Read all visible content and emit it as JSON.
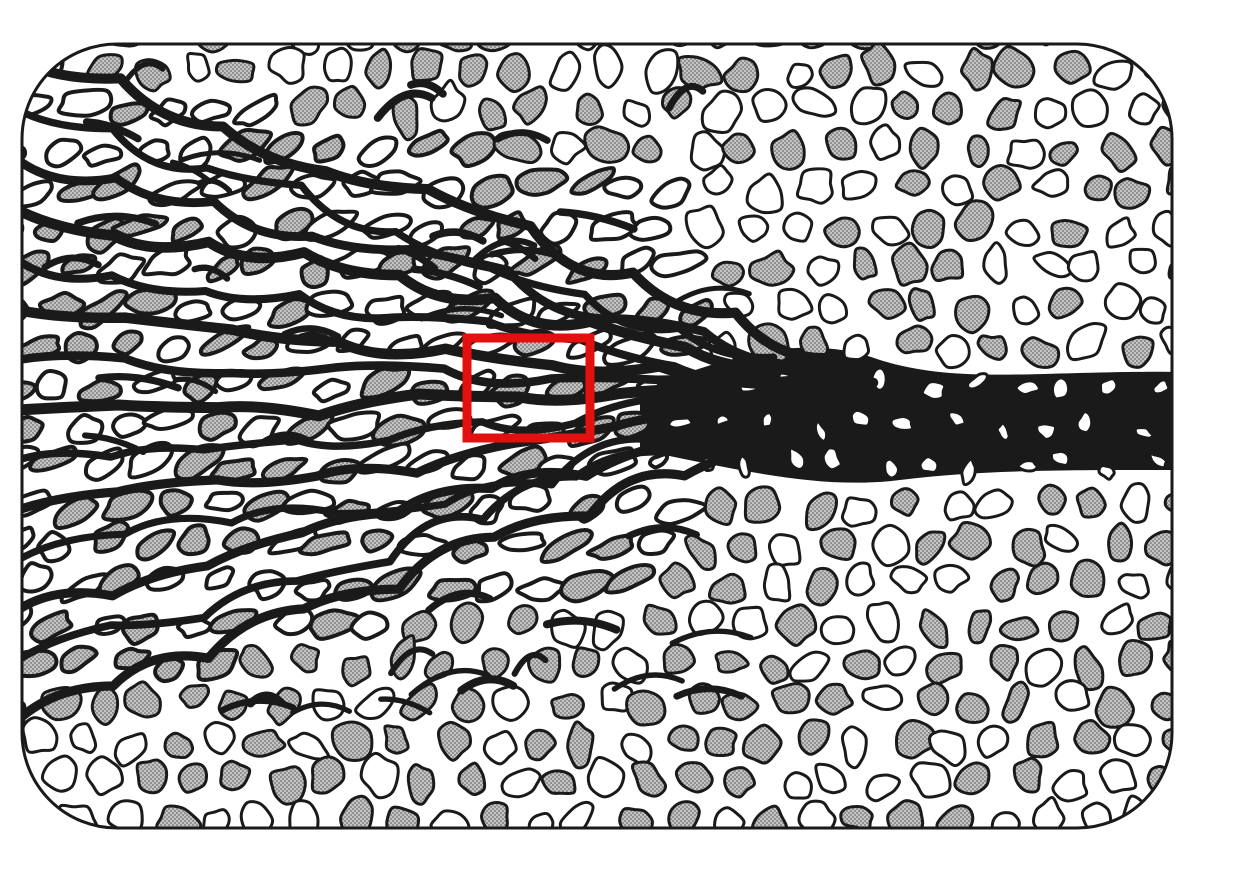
{
  "figure": {
    "background": "#ffffff",
    "ink": "#1a1a1a",
    "grain_fill": "#bdbdbd",
    "highlight_color": "#e41010"
  },
  "highlight": {
    "shape": "square outline",
    "color": "#e41010"
  }
}
